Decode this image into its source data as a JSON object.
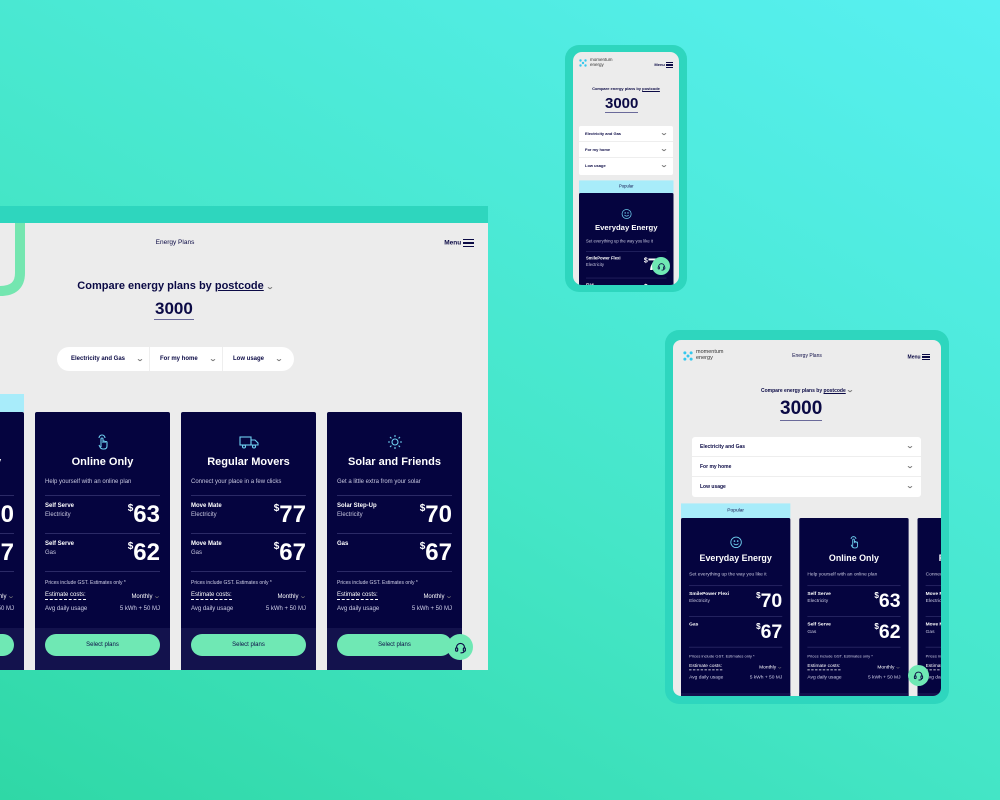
{
  "colors": {
    "brand_navy": "#05043f",
    "accent_green": "#6fe8b4",
    "popular_cyan": "#a8ecfa",
    "frame_teal": "#2ed6be"
  },
  "header": {
    "logo_line1": "momentum",
    "logo_line2": "energy",
    "page_title": "Energy Plans",
    "menu_label": "Menu"
  },
  "search": {
    "prompt": "Compare energy plans by",
    "mode": "postcode",
    "postcode": "3000"
  },
  "filters": [
    {
      "label": "Electricity and Gas"
    },
    {
      "label": "For my home"
    },
    {
      "label": "Low usage"
    }
  ],
  "common": {
    "popular": "Popular",
    "gst_note": "Prices include GST. Estimates only *",
    "estimate_label": "Estimate costs:",
    "period": "Monthly",
    "avg_label": "Avg daily usage",
    "avg_value": "5 kWh + 50 MJ",
    "select_label": "Select plans"
  },
  "plans": [
    {
      "icon": "smiley-icon",
      "title": "Everyday Energy",
      "subtitle": "Set everything up the way you like it",
      "popular": true,
      "rows": [
        {
          "name": "SmilePower Flexi",
          "type": "Electricity",
          "price": "70"
        },
        {
          "name": "Gas",
          "type": "",
          "price": "67"
        }
      ]
    },
    {
      "icon": "hand-tap-icon",
      "title": "Online Only",
      "subtitle": "Help yourself with an online plan",
      "popular": false,
      "rows": [
        {
          "name": "Self Serve",
          "type": "Electricity",
          "price": "63"
        },
        {
          "name": "Self Serve",
          "type": "Gas",
          "price": "62"
        }
      ]
    },
    {
      "icon": "truck-icon",
      "title": "Regular Movers",
      "subtitle": "Connect your place in a few clicks",
      "popular": false,
      "rows": [
        {
          "name": "Move Mate",
          "type": "Electricity",
          "price": "77"
        },
        {
          "name": "Move Mate",
          "type": "Gas",
          "price": "67"
        }
      ]
    },
    {
      "icon": "sun-icon",
      "title": "Solar and Friends",
      "subtitle": "Get a little extra from your solar",
      "popular": false,
      "rows": [
        {
          "name": "Solar Step-Up",
          "type": "Electricity",
          "price": "70"
        },
        {
          "name": "Gas",
          "type": "",
          "price": "67"
        }
      ]
    }
  ]
}
